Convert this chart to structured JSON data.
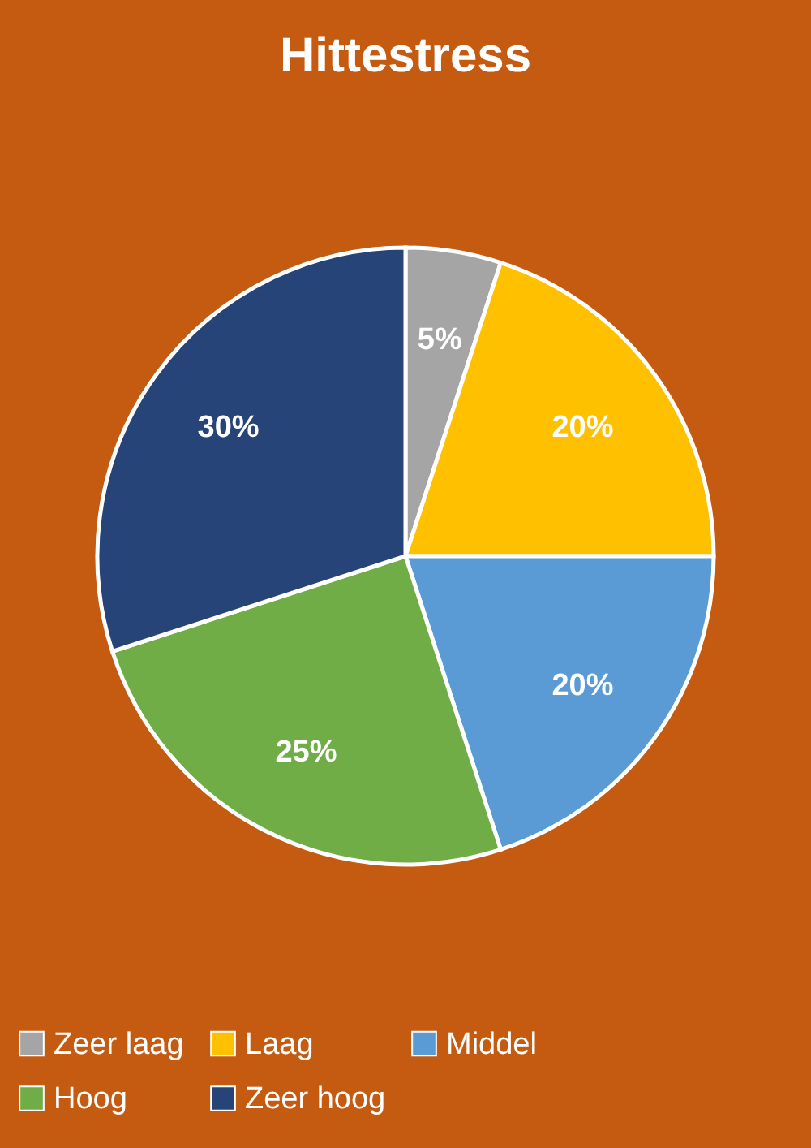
{
  "chart_data": {
    "type": "pie",
    "title": "Hittestress",
    "categories": [
      "Zeer laag",
      "Laag",
      "Middel",
      "Hoog",
      "Zeer hoog"
    ],
    "values": [
      5,
      20,
      20,
      25,
      30
    ],
    "colors": [
      "#a5a5a5",
      "#ffc000",
      "#5b9bd5",
      "#70ad47",
      "#264478"
    ],
    "value_labels": [
      "5%",
      "20%",
      "20%",
      "25%",
      "30%"
    ],
    "legend": "bottom"
  }
}
